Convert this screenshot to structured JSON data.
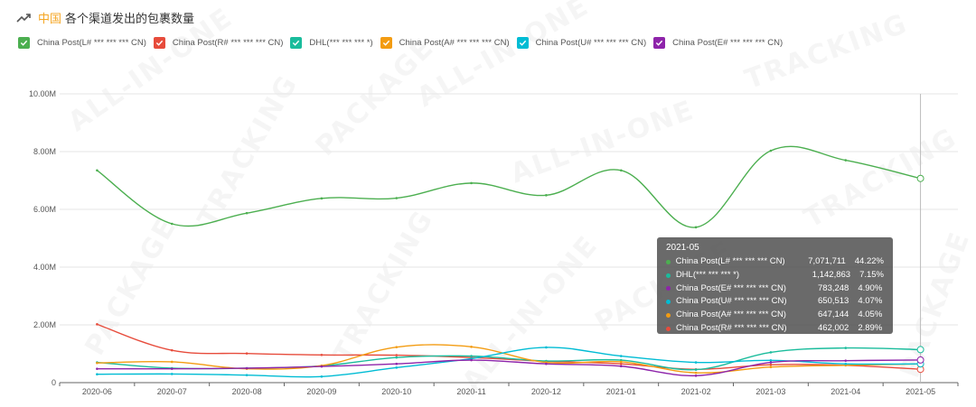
{
  "header": {
    "country": "中国",
    "title": "各个渠道发出的包裹数量",
    "icon": "trend-line-icon"
  },
  "colors": {
    "cn_post_l": "#4caf50",
    "cn_post_r": "#e74c3c",
    "dhl": "#1abc9c",
    "cn_post_a": "#f39c12",
    "cn_post_u": "#00bcd4",
    "cn_post_e": "#8e24aa",
    "watermark": "ALL-IN-ONE / TRACKING / PACKAGE"
  },
  "chart_data": {
    "type": "line",
    "categories": [
      "2020-06",
      "2020-07",
      "2020-08",
      "2020-09",
      "2020-10",
      "2020-11",
      "2020-12",
      "2021-01",
      "2021-02",
      "2021-03",
      "2021-04",
      "2021-05"
    ],
    "ylim": [
      0,
      10000000
    ],
    "y_ticks": [
      "0",
      "2.00M",
      "4.00M",
      "6.00M",
      "8.00M",
      "10.00M"
    ],
    "grid": true,
    "legend_position": "top-left",
    "series": [
      {
        "key": "cn_post_l",
        "name": "China Post(L# *** *** *** CN)",
        "color": "#4caf50",
        "values": [
          7350000,
          5500000,
          5870000,
          6380000,
          6390000,
          6910000,
          6490000,
          7350000,
          5380000,
          8030000,
          7700000,
          7071711
        ]
      },
      {
        "key": "cn_post_r",
        "name": "China Post(R# *** *** *** CN)",
        "color": "#e74c3c",
        "values": [
          2020000,
          1120000,
          1010000,
          960000,
          950000,
          870000,
          740000,
          650000,
          460000,
          620000,
          600000,
          462002
        ]
      },
      {
        "key": "dhl",
        "name": "DHL(*** *** *** *)",
        "color": "#1abc9c",
        "values": [
          700000,
          500000,
          500000,
          580000,
          870000,
          920000,
          750000,
          780000,
          450000,
          1050000,
          1200000,
          1142863
        ]
      },
      {
        "key": "cn_post_a",
        "name": "China Post(A# *** *** *** CN)",
        "color": "#f39c12",
        "values": [
          680000,
          720000,
          480000,
          590000,
          1230000,
          1240000,
          700000,
          720000,
          340000,
          540000,
          600000,
          647144
        ]
      },
      {
        "key": "cn_post_u",
        "name": "China Post(U# *** *** *** CN)",
        "color": "#00bcd4",
        "values": [
          290000,
          300000,
          260000,
          210000,
          520000,
          830000,
          1220000,
          920000,
          700000,
          770000,
          650000,
          650513
        ]
      },
      {
        "key": "cn_post_e",
        "name": "China Post(E# *** *** *** CN)",
        "color": "#8e24aa",
        "values": [
          480000,
          480000,
          500000,
          560000,
          650000,
          780000,
          650000,
          570000,
          240000,
          700000,
          760000,
          783248
        ]
      }
    ],
    "tooltip": {
      "title": "2021-05",
      "rows": [
        {
          "key": "cn_post_l",
          "name": "China Post(L# *** *** *** CN)",
          "value": "7,071,711",
          "pct": "44.22%",
          "color": "#4caf50"
        },
        {
          "key": "dhl",
          "name": "DHL(*** *** *** *)",
          "value": "1,142,863",
          "pct": "7.15%",
          "color": "#1abc9c"
        },
        {
          "key": "cn_post_e",
          "name": "China Post(E# *** *** *** CN)",
          "value": "783,248",
          "pct": "4.90%",
          "color": "#8e24aa"
        },
        {
          "key": "cn_post_u",
          "name": "China Post(U# *** *** *** CN)",
          "value": "650,513",
          "pct": "4.07%",
          "color": "#00bcd4"
        },
        {
          "key": "cn_post_a",
          "name": "China Post(A# *** *** *** CN)",
          "value": "647,144",
          "pct": "4.05%",
          "color": "#f39c12"
        },
        {
          "key": "cn_post_r",
          "name": "China Post(R# *** *** *** CN)",
          "value": "462,002",
          "pct": "2.89%",
          "color": "#e74c3c"
        }
      ]
    }
  }
}
